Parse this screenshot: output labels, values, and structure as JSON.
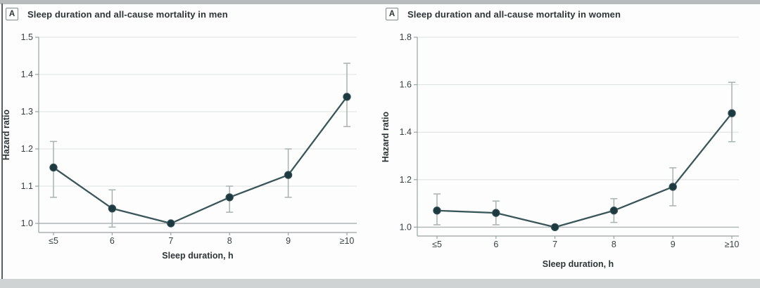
{
  "theme": {
    "series_line": "#3a5659",
    "marker_fill": "#1c3a40",
    "error_bar": "#aab1b1",
    "gridline": "#e0e2e1",
    "baseline_gridline": "#aeb4b4",
    "axis_line": "#9aa1a1",
    "tick_text": "#394042",
    "title_text": "#2e3436",
    "border_strip_top": "#b7bbbb",
    "border_strip_bottom": "#cfd3d3",
    "border_edge_left": "#5a6061"
  },
  "chart_data": [
    {
      "type": "line",
      "panel_label": "A",
      "title": "Sleep duration and all-cause mortality in men",
      "xlabel": "Sleep duration, h",
      "ylabel": "Hazard ratio",
      "categories": [
        "≤5",
        "6",
        "7",
        "8",
        "9",
        "≥10"
      ],
      "values": [
        1.15,
        1.04,
        1.0,
        1.07,
        1.13,
        1.34
      ],
      "ci_low": [
        1.07,
        0.99,
        null,
        1.03,
        1.07,
        1.26
      ],
      "ci_high": [
        1.22,
        1.09,
        null,
        1.1,
        1.2,
        1.43
      ],
      "yticks": [
        1.0,
        1.1,
        1.2,
        1.3,
        1.4,
        1.5
      ],
      "ylim": [
        0.98,
        1.5
      ],
      "grid": "horizontal",
      "legend": "none",
      "error_bars": true,
      "reference_category": "7"
    },
    {
      "type": "line",
      "panel_label": "A",
      "title": "Sleep duration and all-cause mortality in women",
      "xlabel": "Sleep duration, h",
      "ylabel": "Hazard ratio",
      "categories": [
        "≤5",
        "6",
        "7",
        "8",
        "9",
        "≥10"
      ],
      "values": [
        1.07,
        1.06,
        1.0,
        1.07,
        1.17,
        1.48
      ],
      "ci_low": [
        1.01,
        1.01,
        null,
        1.02,
        1.09,
        1.36
      ],
      "ci_high": [
        1.14,
        1.11,
        null,
        1.12,
        1.25,
        1.61
      ],
      "yticks": [
        1.0,
        1.2,
        1.4,
        1.6,
        1.8
      ],
      "ylim": [
        0.96,
        1.8
      ],
      "grid": "horizontal",
      "legend": "none",
      "error_bars": true,
      "reference_category": "7"
    }
  ]
}
